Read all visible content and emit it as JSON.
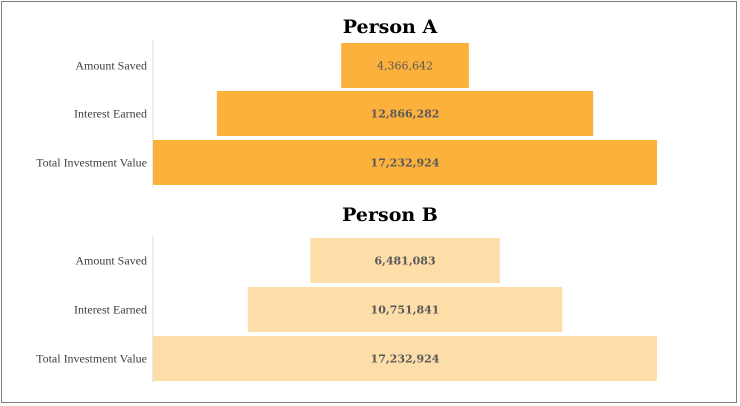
{
  "colors": {
    "person_a": "#FBB13C",
    "person_b": "#FDDDA8",
    "axis": "#D9D9D9",
    "label_text": "#404040",
    "value_text": "#595959"
  },
  "chart_data": [
    {
      "type": "bar",
      "orientation": "horizontal-centered",
      "title": "Person A",
      "categories": [
        "Amount Saved",
        "Interest Earned",
        "Total Investment Value"
      ],
      "values": [
        4366642,
        12866282,
        17232924
      ],
      "value_labels": [
        "4,366,642",
        "12,866,282",
        "17,232,924"
      ],
      "bold_labels": [
        false,
        true,
        true
      ],
      "xlim": [
        0,
        17232924
      ],
      "color": "#FBB13C"
    },
    {
      "type": "bar",
      "orientation": "horizontal-centered",
      "title": "Person B",
      "categories": [
        "Amount Saved",
        "Interest Earned",
        "Total Investment Value"
      ],
      "values": [
        6481083,
        10751841,
        17232924
      ],
      "value_labels": [
        "6,481,083",
        "10,751,841",
        "17,232,924"
      ],
      "bold_labels": [
        true,
        true,
        true
      ],
      "xlim": [
        0,
        17232924
      ],
      "color": "#FDDDA8"
    }
  ]
}
